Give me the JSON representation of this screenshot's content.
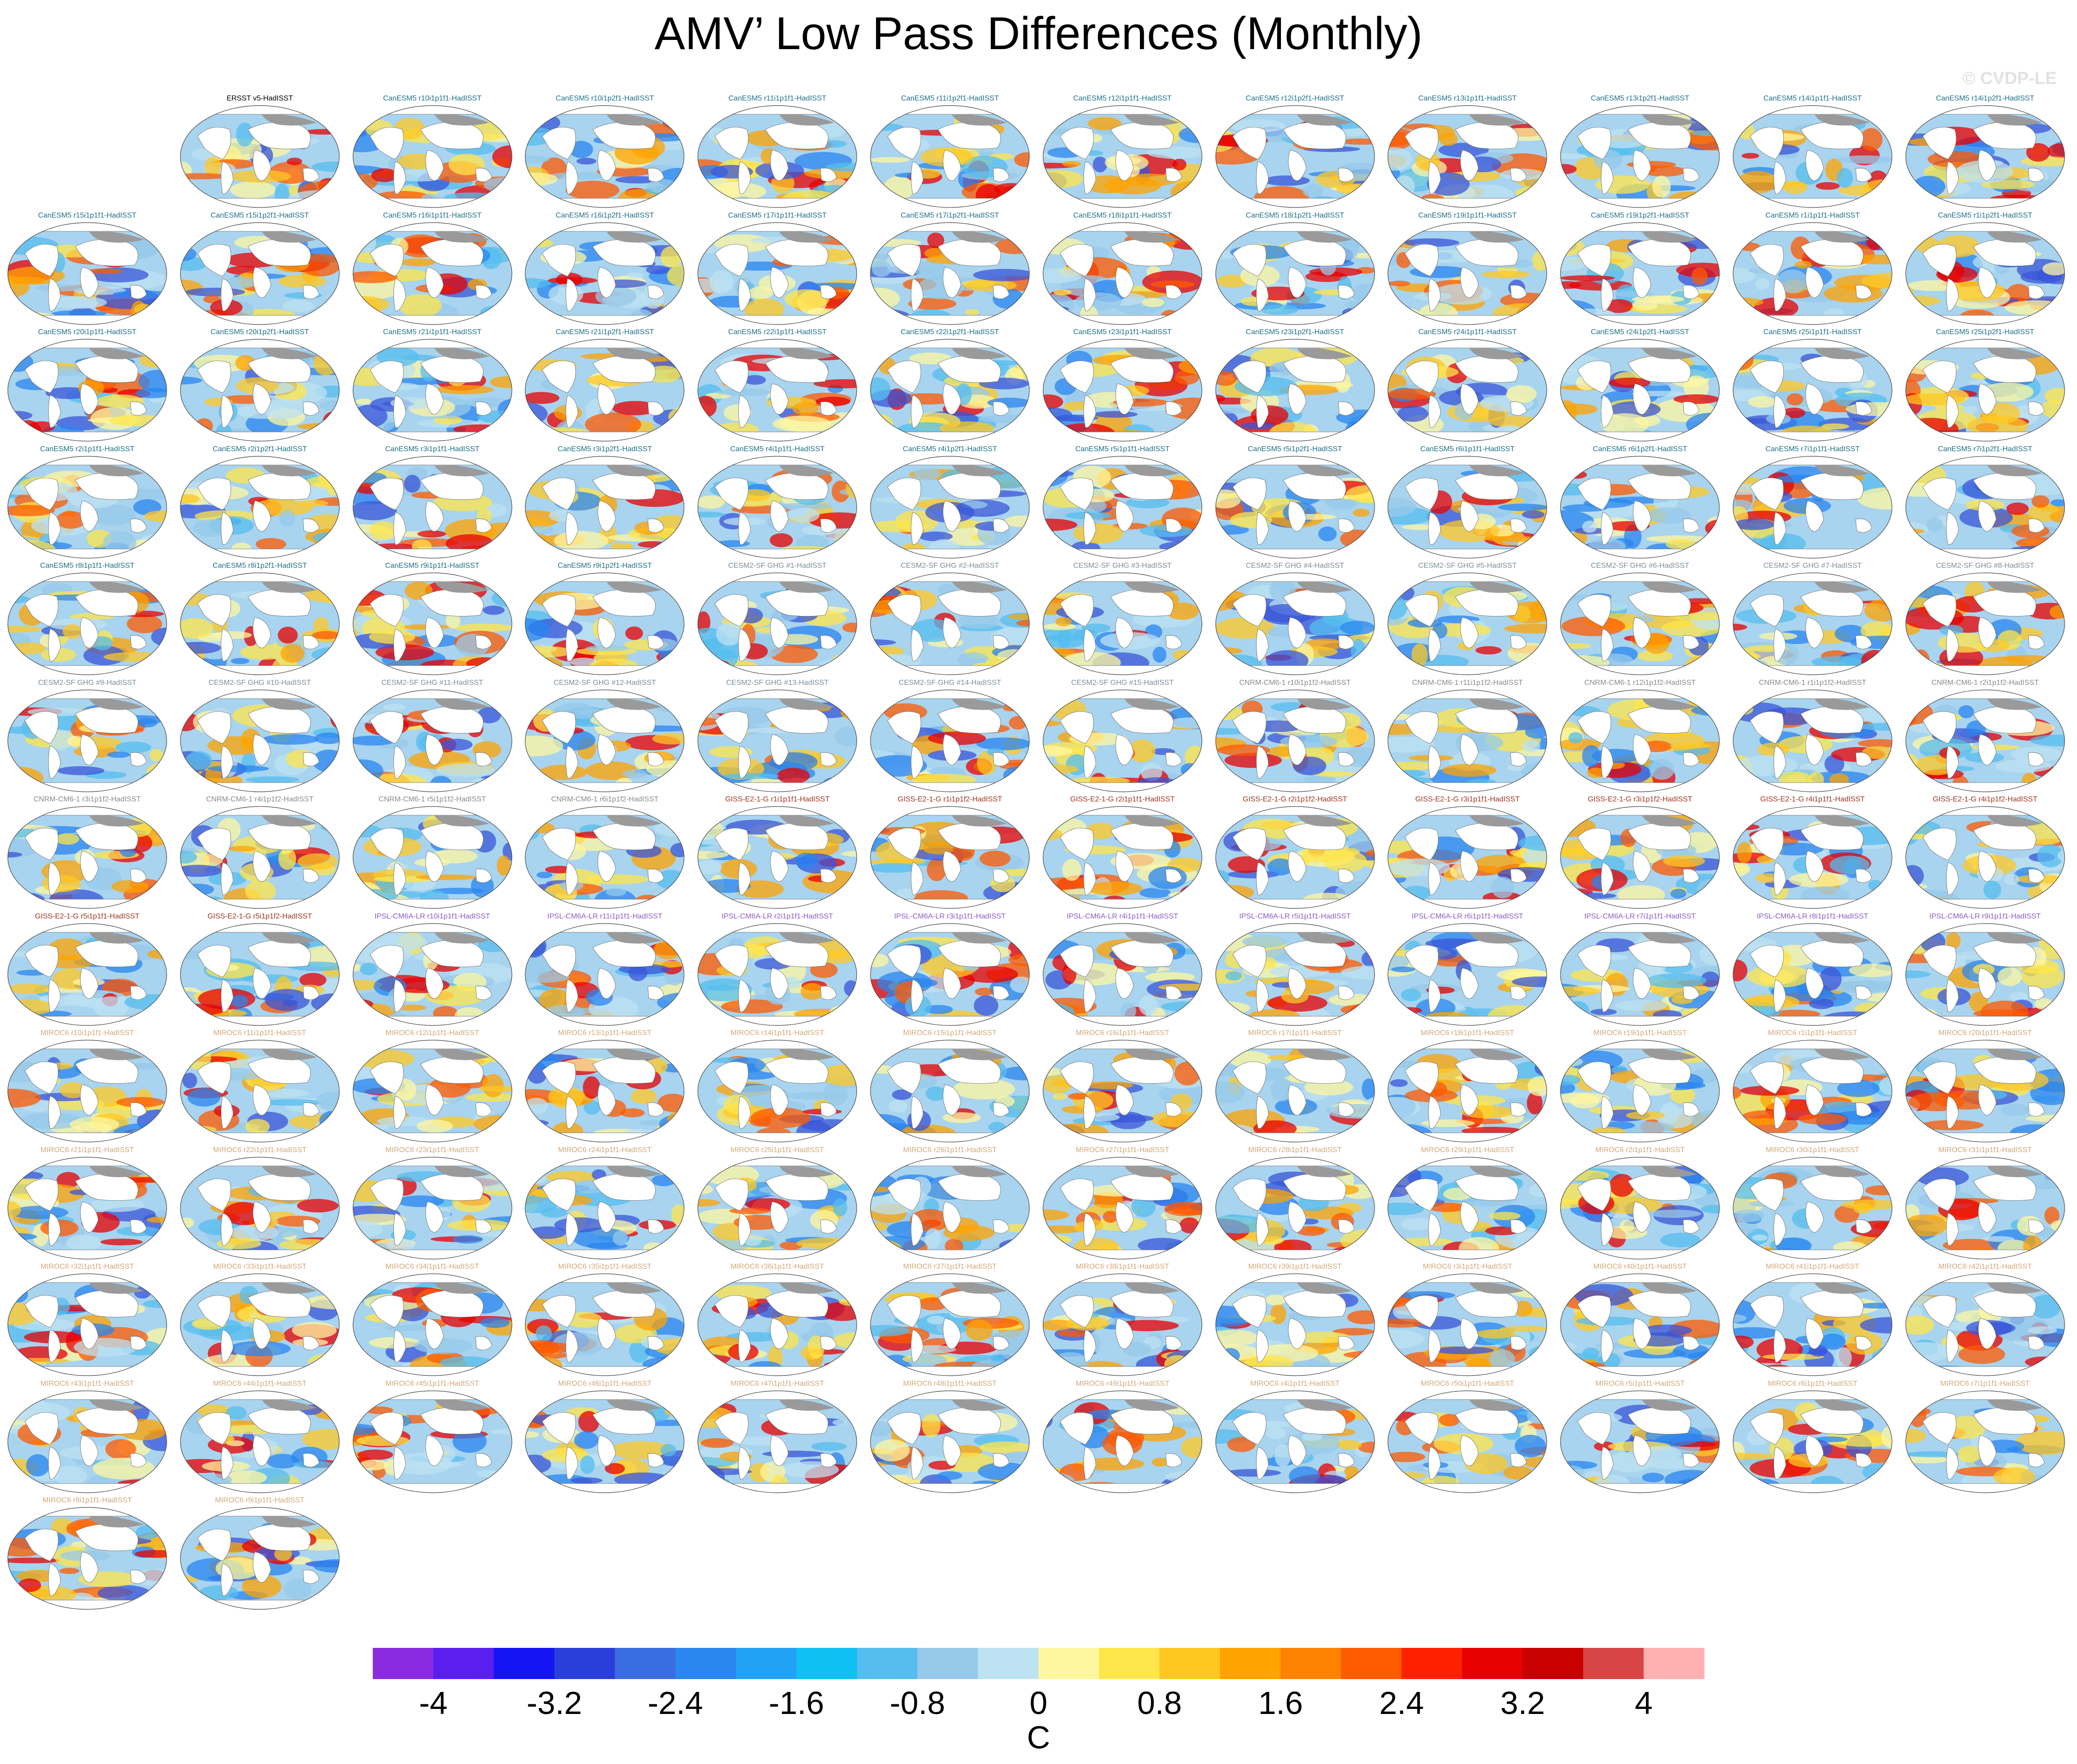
{
  "title": "AMV’ Low Pass Differences (Monthly)",
  "watermark": "© CVDP-LE",
  "panels": [
    {
      "label": "ERSST v5-HadISST",
      "color": "#000000"
    },
    {
      "label": "CanESM5 r10i1p1f1-HadISST",
      "color": "#1f6f8b"
    },
    {
      "label": "CanESM5 r10i1p2f1-HadISST",
      "color": "#1f6f8b"
    },
    {
      "label": "CanESM5 r11i1p1f1-HadISST",
      "color": "#1f6f8b"
    },
    {
      "label": "CanESM5 r11i1p2f1-HadISST",
      "color": "#1f6f8b"
    },
    {
      "label": "CanESM5 r12i1p1f1-HadISST",
      "color": "#1f6f8b"
    },
    {
      "label": "CanESM5 r12i1p2f1-HadISST",
      "color": "#1f6f8b"
    },
    {
      "label": "CanESM5 r13i1p1f1-HadISST",
      "color": "#1f6f8b"
    },
    {
      "label": "CanESM5 r13i1p2f1-HadISST",
      "color": "#1f6f8b"
    },
    {
      "label": "CanESM5 r14i1p1f1-HadISST",
      "color": "#1f6f8b"
    },
    {
      "label": "CanESM5 r14i1p2f1-HadISST",
      "color": "#1f6f8b"
    },
    {
      "label": "CanESM5 r15i1p1f1-HadISST",
      "color": "#1f6f8b"
    },
    {
      "label": "CanESM5 r15i1p2f1-HadISST",
      "color": "#1f6f8b"
    },
    {
      "label": "CanESM5 r16i1p1f1-HadISST",
      "color": "#1f6f8b"
    },
    {
      "label": "CanESM5 r16i1p2f1-HadISST",
      "color": "#1f6f8b"
    },
    {
      "label": "CanESM5 r17i1p1f1-HadISST",
      "color": "#1f6f8b"
    },
    {
      "label": "CanESM5 r17i1p2f1-HadISST",
      "color": "#1f6f8b"
    },
    {
      "label": "CanESM5 r18i1p1f1-HadISST",
      "color": "#1f6f8b"
    },
    {
      "label": "CanESM5 r18i1p2f1-HadISST",
      "color": "#1f6f8b"
    },
    {
      "label": "CanESM5 r19i1p1f1-HadISST",
      "color": "#1f6f8b"
    },
    {
      "label": "CanESM5 r19i1p2f1-HadISST",
      "color": "#1f6f8b"
    },
    {
      "label": "CanESM5 r1i1p1f1-HadISST",
      "color": "#1f6f8b"
    },
    {
      "label": "CanESM5 r1i1p2f1-HadISST",
      "color": "#1f6f8b"
    },
    {
      "label": "CanESM5 r20i1p1f1-HadISST",
      "color": "#1f6f8b"
    },
    {
      "label": "CanESM5 r20i1p2f1-HadISST",
      "color": "#1f6f8b"
    },
    {
      "label": "CanESM5 r21i1p1f1-HadISST",
      "color": "#1f6f8b"
    },
    {
      "label": "CanESM5 r21i1p2f1-HadISST",
      "color": "#1f6f8b"
    },
    {
      "label": "CanESM5 r22i1p1f1-HadISST",
      "color": "#1f6f8b"
    },
    {
      "label": "CanESM5 r22i1p2f1-HadISST",
      "color": "#1f6f8b"
    },
    {
      "label": "CanESM5 r23i1p1f1-HadISST",
      "color": "#1f6f8b"
    },
    {
      "label": "CanESM5 r23i1p2f1-HadISST",
      "color": "#1f6f8b"
    },
    {
      "label": "CanESM5 r24i1p1f1-HadISST",
      "color": "#1f6f8b"
    },
    {
      "label": "CanESM5 r24i1p2f1-HadISST",
      "color": "#1f6f8b"
    },
    {
      "label": "CanESM5 r25i1p1f1-HadISST",
      "color": "#1f6f8b"
    },
    {
      "label": "CanESM5 r25i1p2f1-HadISST",
      "color": "#1f6f8b"
    },
    {
      "label": "CanESM5 r2i1p1f1-HadISST",
      "color": "#1f6f8b"
    },
    {
      "label": "CanESM5 r2i1p2f1-HadISST",
      "color": "#1f6f8b"
    },
    {
      "label": "CanESM5 r3i1p1f1-HadISST",
      "color": "#1f6f8b"
    },
    {
      "label": "CanESM5 r3i1p2f1-HadISST",
      "color": "#1f6f8b"
    },
    {
      "label": "CanESM5 r4i1p1f1-HadISST",
      "color": "#1f6f8b"
    },
    {
      "label": "CanESM5 r4i1p2f1-HadISST",
      "color": "#1f6f8b"
    },
    {
      "label": "CanESM5 r5i1p1f1-HadISST",
      "color": "#1f6f8b"
    },
    {
      "label": "CanESM5 r5i1p2f1-HadISST",
      "color": "#1f6f8b"
    },
    {
      "label": "CanESM5 r6i1p1f1-HadISST",
      "color": "#1f6f8b"
    },
    {
      "label": "CanESM5 r6i1p2f1-HadISST",
      "color": "#1f6f8b"
    },
    {
      "label": "CanESM5 r7i1p1f1-HadISST",
      "color": "#1f6f8b"
    },
    {
      "label": "CanESM5 r7i1p2f1-HadISST",
      "color": "#1f6f8b"
    },
    {
      "label": "CanESM5 r8i1p1f1-HadISST",
      "color": "#1f6f8b"
    },
    {
      "label": "CanESM5 r8i1p2f1-HadISST",
      "color": "#1f6f8b"
    },
    {
      "label": "CanESM5 r9i1p1f1-HadISST",
      "color": "#1f6f8b"
    },
    {
      "label": "CanESM5 r9i1p2f1-HadISST",
      "color": "#1f6f8b"
    },
    {
      "label": "CESM2-SF GHG #1-HadISST",
      "color": "#7b8f9a"
    },
    {
      "label": "CESM2-SF GHG #2-HadISST",
      "color": "#7b8f9a"
    },
    {
      "label": "CESM2-SF GHG #3-HadISST",
      "color": "#7b8f9a"
    },
    {
      "label": "CESM2-SF GHG #4-HadISST",
      "color": "#7b8f9a"
    },
    {
      "label": "CESM2-SF GHG #5-HadISST",
      "color": "#7b8f9a"
    },
    {
      "label": "CESM2-SF GHG #6-HadISST",
      "color": "#7b8f9a"
    },
    {
      "label": "CESM2-SF GHG #7-HadISST",
      "color": "#7b8f9a"
    },
    {
      "label": "CESM2-SF GHG #8-HadISST",
      "color": "#7b8f9a"
    },
    {
      "label": "CESM2-SF GHG #9-HadISST",
      "color": "#7b8f9a"
    },
    {
      "label": "CESM2-SF GHG #10-HadISST",
      "color": "#7b8f9a"
    },
    {
      "label": "CESM2-SF GHG #11-HadISST",
      "color": "#7b8f9a"
    },
    {
      "label": "CESM2-SF GHG #12-HadISST",
      "color": "#7b8f9a"
    },
    {
      "label": "CESM2-SF GHG #13-HadISST",
      "color": "#7b8f9a"
    },
    {
      "label": "CESM2-SF GHG #14-HadISST",
      "color": "#7b8f9a"
    },
    {
      "label": "CESM2-SF GHG #15-HadISST",
      "color": "#7b8f9a"
    },
    {
      "label": "CNRM-CM6-1 r10i1p1f2-HadISST",
      "color": "#8a8a8a"
    },
    {
      "label": "CNRM-CM6-1 r11i1p1f2-HadISST",
      "color": "#8a8a8a"
    },
    {
      "label": "CNRM-CM6-1 r12i1p1f2-HadISST",
      "color": "#8a8a8a"
    },
    {
      "label": "CNRM-CM6-1 r1i1p1f2-HadISST",
      "color": "#8a8a8a"
    },
    {
      "label": "CNRM-CM6-1 r2i1p1f2-HadISST",
      "color": "#8a8a8a"
    },
    {
      "label": "CNRM-CM6-1 r3i1p1f2-HadISST",
      "color": "#8a8a8a"
    },
    {
      "label": "CNRM-CM6-1 r4i1p1f2-HadISST",
      "color": "#8a8a8a"
    },
    {
      "label": "CNRM-CM6-1 r5i1p1f2-HadISST",
      "color": "#8a8a8a"
    },
    {
      "label": "CNRM-CM6-1 r6i1p1f2-HadISST",
      "color": "#8a8a8a"
    },
    {
      "label": "GISS-E2-1-G r1i1p1f1-HadISST",
      "color": "#a0361e"
    },
    {
      "label": "GISS-E2-1-G r1i1p1f2-HadISST",
      "color": "#a0361e"
    },
    {
      "label": "GISS-E2-1-G r2i1p1f1-HadISST",
      "color": "#a0361e"
    },
    {
      "label": "GISS-E2-1-G r2i1p1f2-HadISST",
      "color": "#a0361e"
    },
    {
      "label": "GISS-E2-1-G r3i1p1f1-HadISST",
      "color": "#a0361e"
    },
    {
      "label": "GISS-E2-1-G r3i1p1f2-HadISST",
      "color": "#a0361e"
    },
    {
      "label": "GISS-E2-1-G r4i1p1f1-HadISST",
      "color": "#a0361e"
    },
    {
      "label": "GISS-E2-1-G r4i1p1f2-HadISST",
      "color": "#a0361e"
    },
    {
      "label": "GISS-E2-1-G r5i1p1f1-HadISST",
      "color": "#a0361e"
    },
    {
      "label": "GISS-E2-1-G r5i1p1f2-HadISST",
      "color": "#a0361e"
    },
    {
      "label": "IPSL-CM6A-LR r10i1p1f1-HadISST",
      "color": "#8b5cc7"
    },
    {
      "label": "IPSL-CM6A-LR r11i1p1f1-HadISST",
      "color": "#8b5cc7"
    },
    {
      "label": "IPSL-CM6A-LR r2i1p1f1-HadISST",
      "color": "#8b5cc7"
    },
    {
      "label": "IPSL-CM6A-LR r3i1p1f1-HadISST",
      "color": "#8b5cc7"
    },
    {
      "label": "IPSL-CM6A-LR r4i1p1f1-HadISST",
      "color": "#8b5cc7"
    },
    {
      "label": "IPSL-CM6A-LR r5i1p1f1-HadISST",
      "color": "#8b5cc7"
    },
    {
      "label": "IPSL-CM6A-LR r6i1p1f1-HadISST",
      "color": "#8b5cc7"
    },
    {
      "label": "IPSL-CM6A-LR r7i1p1f1-HadISST",
      "color": "#8b5cc7"
    },
    {
      "label": "IPSL-CM6A-LR r8i1p1f1-HadISST",
      "color": "#8b5cc7"
    },
    {
      "label": "IPSL-CM6A-LR r9i1p1f1-HadISST",
      "color": "#8b5cc7"
    },
    {
      "label": "MIROC6 r10i1p1f1-HadISST",
      "color": "#d4a87a"
    },
    {
      "label": "MIROC6 r11i1p1f1-HadISST",
      "color": "#d4a87a"
    },
    {
      "label": "MIROC6 r12i1p1f1-HadISST",
      "color": "#d4a87a"
    },
    {
      "label": "MIROC6 r13i1p1f1-HadISST",
      "color": "#d4a87a"
    },
    {
      "label": "MIROC6 r14i1p1f1-HadISST",
      "color": "#d4a87a"
    },
    {
      "label": "MIROC6 r15i1p1f1-HadISST",
      "color": "#d4a87a"
    },
    {
      "label": "MIROC6 r16i1p1f1-HadISST",
      "color": "#d4a87a"
    },
    {
      "label": "MIROC6 r17i1p1f1-HadISST",
      "color": "#d4a87a"
    },
    {
      "label": "MIROC6 r18i1p1f1-HadISST",
      "color": "#d4a87a"
    },
    {
      "label": "MIROC6 r19i1p1f1-HadISST",
      "color": "#d4a87a"
    },
    {
      "label": "MIROC6 r1i1p1f1-HadISST",
      "color": "#d4a87a"
    },
    {
      "label": "MIROC6 r20i1p1f1-HadISST",
      "color": "#d4a87a"
    },
    {
      "label": "MIROC6 r21i1p1f1-HadISST",
      "color": "#d4a87a"
    },
    {
      "label": "MIROC6 r22i1p1f1-HadISST",
      "color": "#d4a87a"
    },
    {
      "label": "MIROC6 r23i1p1f1-HadISST",
      "color": "#d4a87a"
    },
    {
      "label": "MIROC6 r24i1p1f1-HadISST",
      "color": "#d4a87a"
    },
    {
      "label": "MIROC6 r25i1p1f1-HadISST",
      "color": "#d4a87a"
    },
    {
      "label": "MIROC6 r26i1p1f1-HadISST",
      "color": "#d4a87a"
    },
    {
      "label": "MIROC6 r27i1p1f1-HadISST",
      "color": "#d4a87a"
    },
    {
      "label": "MIROC6 r28i1p1f1-HadISST",
      "color": "#d4a87a"
    },
    {
      "label": "MIROC6 r29i1p1f1-HadISST",
      "color": "#d4a87a"
    },
    {
      "label": "MIROC6 r2i1p1f1-HadISST",
      "color": "#d4a87a"
    },
    {
      "label": "MIROC6 r30i1p1f1-HadISST",
      "color": "#d4a87a"
    },
    {
      "label": "MIROC6 r31i1p1f1-HadISST",
      "color": "#d4a87a"
    },
    {
      "label": "MIROC6 r32i1p1f1-HadISST",
      "color": "#d4a87a"
    },
    {
      "label": "MIROC6 r33i1p1f1-HadISST",
      "color": "#d4a87a"
    },
    {
      "label": "MIROC6 r34i1p1f1-HadISST",
      "color": "#d4a87a"
    },
    {
      "label": "MIROC6 r35i1p1f1-HadISST",
      "color": "#d4a87a"
    },
    {
      "label": "MIROC6 r36i1p1f1-HadISST",
      "color": "#d4a87a"
    },
    {
      "label": "MIROC6 r37i1p1f1-HadISST",
      "color": "#d4a87a"
    },
    {
      "label": "MIROC6 r38i1p1f1-HadISST",
      "color": "#d4a87a"
    },
    {
      "label": "MIROC6 r39i1p1f1-HadISST",
      "color": "#d4a87a"
    },
    {
      "label": "MIROC6 r3i1p1f1-HadISST",
      "color": "#d4a87a"
    },
    {
      "label": "MIROC6 r40i1p1f1-HadISST",
      "color": "#d4a87a"
    },
    {
      "label": "MIROC6 r41i1p1f1-HadISST",
      "color": "#d4a87a"
    },
    {
      "label": "MIROC6 r42i1p1f1-HadISST",
      "color": "#d4a87a"
    },
    {
      "label": "MIROC6 r43i1p1f1-HadISST",
      "color": "#d4a87a"
    },
    {
      "label": "MIROC6 r44i1p1f1-HadISST",
      "color": "#d4a87a"
    },
    {
      "label": "MIROC6 r45i1p1f1-HadISST",
      "color": "#d4a87a"
    },
    {
      "label": "MIROC6 r46i1p1f1-HadISST",
      "color": "#d4a87a"
    },
    {
      "label": "MIROC6 r47i1p1f1-HadISST",
      "color": "#d4a87a"
    },
    {
      "label": "MIROC6 r48i1p1f1-HadISST",
      "color": "#d4a87a"
    },
    {
      "label": "MIROC6 r49i1p1f1-HadISST",
      "color": "#d4a87a"
    },
    {
      "label": "MIROC6 r4i1p1f1-HadISST",
      "color": "#d4a87a"
    },
    {
      "label": "MIROC6 r50i1p1f1-HadISST",
      "color": "#d4a87a"
    },
    {
      "label": "MIROC6 r5i1p1f1-HadISST",
      "color": "#d4a87a"
    },
    {
      "label": "MIROC6 r6i1p1f1-HadISST",
      "color": "#d4a87a"
    },
    {
      "label": "MIROC6 r7i1p1f1-HadISST",
      "color": "#d4a87a"
    },
    {
      "label": "MIROC6 r8i1p1f1-HadISST",
      "color": "#d4a87a"
    },
    {
      "label": "MIROC6 r9i1p1f1-HadISST",
      "color": "#d4a87a"
    }
  ],
  "colorbar": {
    "colors": [
      "#8a2be2",
      "#5a1ef0",
      "#1414f5",
      "#2a3fd9",
      "#3a6ee0",
      "#2a86f0",
      "#22a2f5",
      "#10c0f5",
      "#55bdef",
      "#97c9ea",
      "#bde2f2",
      "#fff7a0",
      "#ffe64a",
      "#ffc821",
      "#ffa300",
      "#ff8200",
      "#ff5a00",
      "#ff2000",
      "#e80000",
      "#c80000",
      "#d74545",
      "#ffb0b0"
    ],
    "tick_labels": [
      "-4",
      "-3.2",
      "-2.4",
      "-1.6",
      "-0.8",
      "0",
      "0.8",
      "1.6",
      "2.4",
      "3.2",
      "4"
    ],
    "unit": "C"
  }
}
